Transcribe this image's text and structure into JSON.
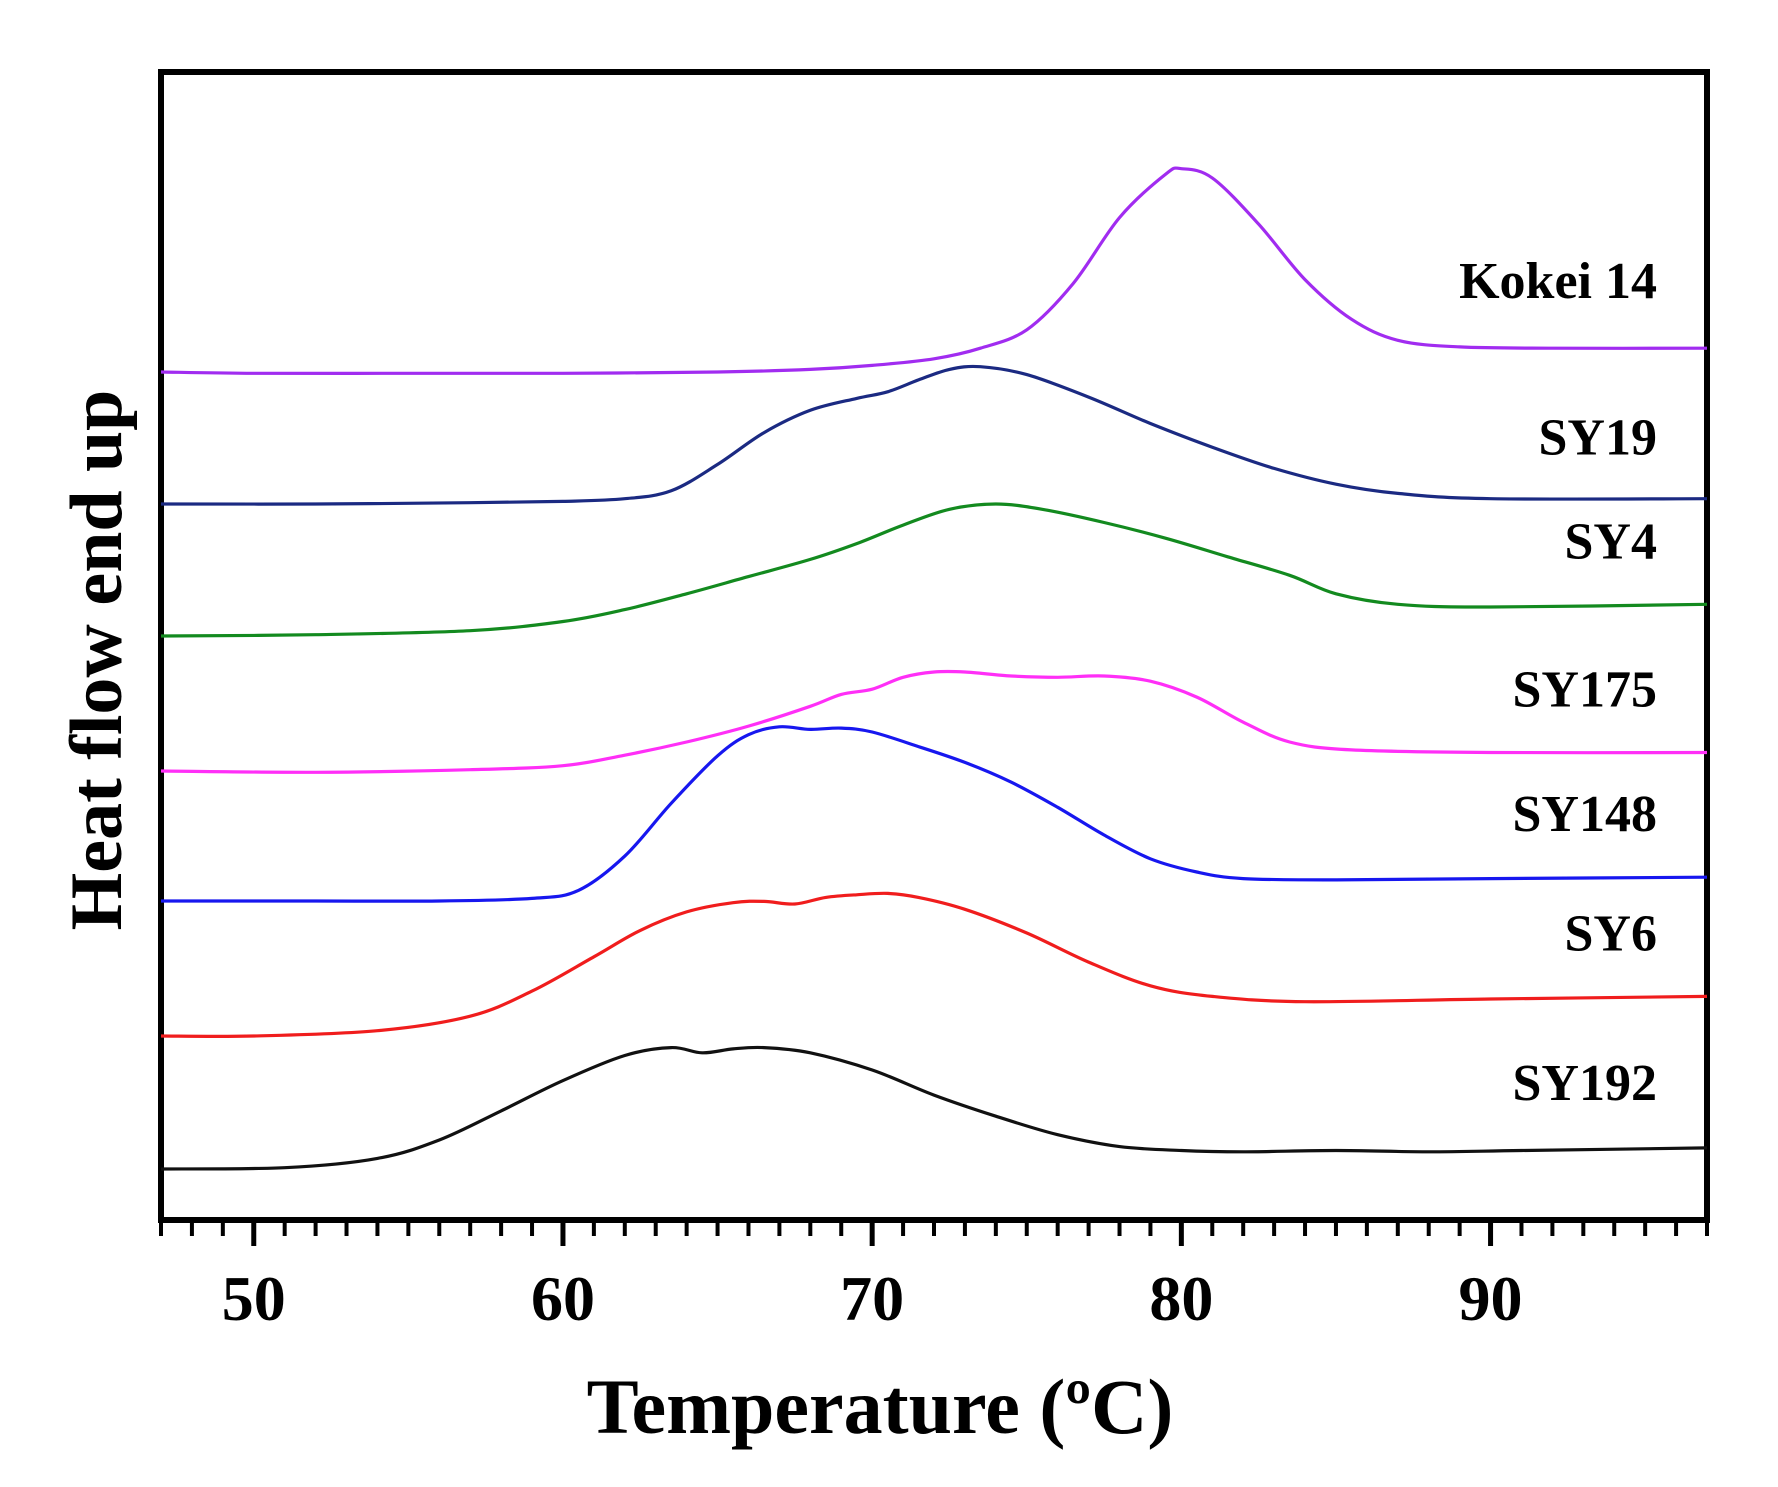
{
  "chart_data": {
    "type": "line",
    "title": "",
    "xlabel": "Temperature (ºC)",
    "ylabel": "Heat flow end up",
    "xlim": [
      47,
      97
    ],
    "x_ticks": [
      50,
      60,
      70,
      80,
      90
    ],
    "x_minor_step": 1,
    "y_ticks": [],
    "y_units": "arbitrary (stacked, offset curves)",
    "grid": false,
    "legend": "inline labels at right of each curve",
    "series": [
      {
        "name": "Kokei 14",
        "color": "#a12cf0",
        "points": [
          [
            47,
            0.28
          ],
          [
            50,
            0.27
          ],
          [
            55,
            0.27
          ],
          [
            60,
            0.27
          ],
          [
            65,
            0.28
          ],
          [
            68,
            0.3
          ],
          [
            70,
            0.33
          ],
          [
            72,
            0.38
          ],
          [
            73.5,
            0.46
          ],
          [
            75,
            0.6
          ],
          [
            76.5,
            0.95
          ],
          [
            78,
            1.45
          ],
          [
            79.5,
            1.78
          ],
          [
            80,
            1.82
          ],
          [
            81,
            1.75
          ],
          [
            82.5,
            1.4
          ],
          [
            84,
            0.98
          ],
          [
            85.5,
            0.68
          ],
          [
            87,
            0.52
          ],
          [
            89,
            0.47
          ],
          [
            92,
            0.46
          ],
          [
            97,
            0.46
          ]
        ]
      },
      {
        "name": "SY19",
        "color": "#1b2a82",
        "points": [
          [
            47,
            0.28
          ],
          [
            52,
            0.28
          ],
          [
            57,
            0.29
          ],
          [
            60,
            0.3
          ],
          [
            62,
            0.32
          ],
          [
            63.5,
            0.38
          ],
          [
            65,
            0.58
          ],
          [
            66.5,
            0.82
          ],
          [
            68,
            0.99
          ],
          [
            69.5,
            1.08
          ],
          [
            70.5,
            1.13
          ],
          [
            71.5,
            1.22
          ],
          [
            72.5,
            1.3
          ],
          [
            73.5,
            1.32
          ],
          [
            75,
            1.26
          ],
          [
            77,
            1.09
          ],
          [
            79,
            0.89
          ],
          [
            81,
            0.71
          ],
          [
            83,
            0.55
          ],
          [
            85,
            0.43
          ],
          [
            87,
            0.36
          ],
          [
            90,
            0.32
          ],
          [
            97,
            0.32
          ]
        ]
      },
      {
        "name": "SY4",
        "color": "#138a1f",
        "points": [
          [
            47,
            0.28
          ],
          [
            52,
            0.29
          ],
          [
            57,
            0.32
          ],
          [
            60,
            0.39
          ],
          [
            62,
            0.48
          ],
          [
            64,
            0.6
          ],
          [
            66,
            0.73
          ],
          [
            68,
            0.86
          ],
          [
            69.5,
            0.98
          ],
          [
            71,
            1.12
          ],
          [
            72.5,
            1.24
          ],
          [
            74,
            1.28
          ],
          [
            75.5,
            1.24
          ],
          [
            77.5,
            1.14
          ],
          [
            79.5,
            1.02
          ],
          [
            81.5,
            0.88
          ],
          [
            83.5,
            0.74
          ],
          [
            85,
            0.6
          ],
          [
            87,
            0.52
          ],
          [
            90,
            0.5
          ],
          [
            97,
            0.52
          ]
        ]
      },
      {
        "name": "SY175",
        "color": "#ff2ff7",
        "points": [
          [
            47,
            0.28
          ],
          [
            52,
            0.27
          ],
          [
            57,
            0.29
          ],
          [
            60,
            0.32
          ],
          [
            62,
            0.4
          ],
          [
            64,
            0.5
          ],
          [
            66,
            0.62
          ],
          [
            68,
            0.77
          ],
          [
            69,
            0.86
          ],
          [
            70,
            0.9
          ],
          [
            71,
            0.99
          ],
          [
            72,
            1.03
          ],
          [
            73,
            1.03
          ],
          [
            74.5,
            1.0
          ],
          [
            76,
            0.99
          ],
          [
            77.5,
            1.0
          ],
          [
            79,
            0.96
          ],
          [
            80.5,
            0.84
          ],
          [
            82,
            0.65
          ],
          [
            83.5,
            0.5
          ],
          [
            85.5,
            0.44
          ],
          [
            90,
            0.42
          ],
          [
            97,
            0.42
          ]
        ]
      },
      {
        "name": "SY148",
        "color": "#1717ef",
        "points": [
          [
            47,
            0.28
          ],
          [
            52,
            0.28
          ],
          [
            56,
            0.28
          ],
          [
            59,
            0.3
          ],
          [
            60.5,
            0.36
          ],
          [
            62,
            0.62
          ],
          [
            63.5,
            1.02
          ],
          [
            65,
            1.38
          ],
          [
            66,
            1.54
          ],
          [
            67,
            1.6
          ],
          [
            68,
            1.58
          ],
          [
            69,
            1.59
          ],
          [
            70,
            1.56
          ],
          [
            71.5,
            1.45
          ],
          [
            73,
            1.33
          ],
          [
            74.5,
            1.18
          ],
          [
            76,
            0.99
          ],
          [
            77.5,
            0.78
          ],
          [
            79,
            0.6
          ],
          [
            80.5,
            0.5
          ],
          [
            82,
            0.45
          ],
          [
            85,
            0.44
          ],
          [
            90,
            0.45
          ],
          [
            97,
            0.46
          ]
        ]
      },
      {
        "name": "SY6",
        "color": "#f01d1d",
        "points": [
          [
            47,
            0.28
          ],
          [
            50,
            0.28
          ],
          [
            54,
            0.32
          ],
          [
            57,
            0.43
          ],
          [
            59,
            0.62
          ],
          [
            61,
            0.88
          ],
          [
            62.5,
            1.08
          ],
          [
            64,
            1.22
          ],
          [
            65.5,
            1.29
          ],
          [
            66.5,
            1.3
          ],
          [
            67.5,
            1.28
          ],
          [
            68.5,
            1.33
          ],
          [
            69.5,
            1.35
          ],
          [
            70.5,
            1.36
          ],
          [
            71.5,
            1.33
          ],
          [
            73,
            1.24
          ],
          [
            75,
            1.06
          ],
          [
            77,
            0.84
          ],
          [
            79,
            0.66
          ],
          [
            81,
            0.58
          ],
          [
            84,
            0.54
          ],
          [
            90,
            0.56
          ],
          [
            97,
            0.58
          ]
        ]
      },
      {
        "name": "SY192",
        "color": "#111111",
        "points": [
          [
            47,
            0.28
          ],
          [
            51,
            0.29
          ],
          [
            54,
            0.36
          ],
          [
            56,
            0.5
          ],
          [
            58,
            0.72
          ],
          [
            60,
            0.95
          ],
          [
            62,
            1.14
          ],
          [
            63.5,
            1.2
          ],
          [
            64.5,
            1.16
          ],
          [
            65.5,
            1.19
          ],
          [
            66.5,
            1.2
          ],
          [
            68,
            1.16
          ],
          [
            70,
            1.03
          ],
          [
            72,
            0.84
          ],
          [
            74,
            0.68
          ],
          [
            76,
            0.54
          ],
          [
            78,
            0.45
          ],
          [
            80,
            0.42
          ],
          [
            82,
            0.41
          ],
          [
            85,
            0.42
          ],
          [
            88,
            0.41
          ],
          [
            91,
            0.42
          ],
          [
            97,
            0.44
          ]
        ]
      }
    ]
  }
}
